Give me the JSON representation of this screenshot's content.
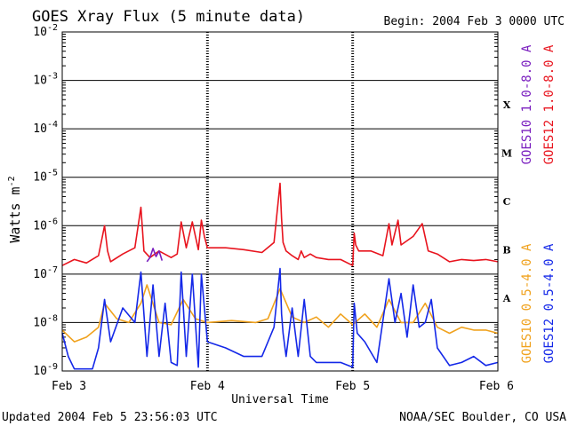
{
  "header": {
    "title": "GOES Xray Flux (5 minute data)",
    "begin": "Begin:  2004 Feb 3 0000 UTC"
  },
  "footer": {
    "updated": "Updated 2004 Feb  5 23:56:03 UTC",
    "source": "NOAA/SEC Boulder, CO USA"
  },
  "colors": {
    "goes10_long": "#7a1fbf",
    "goes12_long": "#e8141e",
    "goes10_short": "#f0a21e",
    "goes12_short": "#1428e8",
    "axes": "#000000"
  },
  "chart_data": {
    "type": "line",
    "title": "GOES Xray Flux (5 minute data)",
    "xlabel": "Universal Time",
    "ylabel": "Watts m",
    "ylabel_superscript": "-2",
    "yscale": "log",
    "ylim": [
      1e-09,
      0.01
    ],
    "xlim": [
      "2004-02-03",
      "2004-02-06"
    ],
    "x_ticks": [
      "Feb 3",
      "Feb 4",
      "Feb 5",
      "Feb 6"
    ],
    "y_ticks": [
      {
        "base": "10",
        "exp": "-2"
      },
      {
        "base": "10",
        "exp": "-3"
      },
      {
        "base": "10",
        "exp": "-4"
      },
      {
        "base": "10",
        "exp": "-5"
      },
      {
        "base": "10",
        "exp": "-6"
      },
      {
        "base": "10",
        "exp": "-7"
      },
      {
        "base": "10",
        "exp": "-8"
      },
      {
        "base": "10",
        "exp": "-9"
      }
    ],
    "flare_classes": [
      "X",
      "M",
      "C",
      "B",
      "A"
    ],
    "grid": "horizontal at each decade",
    "legend_position": "right, rotated",
    "series": [
      {
        "name": "GOES10 1.0-8.0 A",
        "x": [
          "2004-02-03 14:00",
          "2004-02-03 14:30",
          "2004-02-03 15:00",
          "2004-02-03 15:30",
          "2004-02-03 16:00",
          "2004-02-03 16:30"
        ],
        "values": [
          1.8e-07,
          2.2e-07,
          3.4e-07,
          2.3e-07,
          3e-07,
          1.9e-07
        ]
      },
      {
        "name": "GOES12 1.0-8.0 A",
        "x": [
          "2004-02-03 00:00",
          "2004-02-03 02:00",
          "2004-02-03 04:00",
          "2004-02-03 06:00",
          "2004-02-03 07:00",
          "2004-02-03 07:30",
          "2004-02-03 08:00",
          "2004-02-03 10:00",
          "2004-02-03 12:00",
          "2004-02-03 13:00",
          "2004-02-03 13:30",
          "2004-02-03 14:30",
          "2004-02-03 16:00",
          "2004-02-03 18:00",
          "2004-02-03 19:00",
          "2004-02-03 19:40",
          "2004-02-03 20:30",
          "2004-02-03 21:30",
          "2004-02-03 22:30",
          "2004-02-03 23:00",
          "2004-02-03 23:30",
          "2004-02-04 00:00",
          "2004-02-04 03:00",
          "2004-02-04 06:00",
          "2004-02-04 09:00",
          "2004-02-04 11:00",
          "2004-02-04 12:00",
          "2004-02-04 12:15",
          "2004-02-04 12:30",
          "2004-02-04 13:00",
          "2004-02-04 14:00",
          "2004-02-04 15:00",
          "2004-02-04 15:30",
          "2004-02-04 16:00",
          "2004-02-04 17:00",
          "2004-02-04 18:00",
          "2004-02-04 20:00",
          "2004-02-04 22:00",
          "2004-02-05 00:00",
          "2004-02-05 00:15",
          "2004-02-05 00:30",
          "2004-02-05 01:00",
          "2004-02-05 03:00",
          "2004-02-05 05:00",
          "2004-02-05 06:00",
          "2004-02-05 06:30",
          "2004-02-05 07:30",
          "2004-02-05 08:00",
          "2004-02-05 10:00",
          "2004-02-05 11:30",
          "2004-02-05 12:30",
          "2004-02-05 14:00",
          "2004-02-05 16:00",
          "2004-02-05 18:00",
          "2004-02-05 20:00",
          "2004-02-05 22:00",
          "2004-02-06 00:00"
        ],
        "values": [
          1.5e-07,
          2e-07,
          1.7e-07,
          2.4e-07,
          1e-06,
          3e-07,
          1.8e-07,
          2.6e-07,
          3.5e-07,
          2.4e-06,
          3e-07,
          2.2e-07,
          3e-07,
          2.2e-07,
          2.6e-07,
          1.2e-06,
          3.5e-07,
          1.2e-06,
          3.2e-07,
          1.3e-06,
          6e-07,
          3.5e-07,
          3.5e-07,
          3.2e-07,
          2.8e-07,
          4.5e-07,
          7.5e-06,
          1.4e-06,
          4.5e-07,
          3e-07,
          2.4e-07,
          2e-07,
          3e-07,
          2.2e-07,
          2.6e-07,
          2.2e-07,
          2e-07,
          2e-07,
          1.5e-07,
          7e-07,
          4e-07,
          3e-07,
          3e-07,
          2.4e-07,
          1.1e-06,
          4e-07,
          1.3e-06,
          4e-07,
          6e-07,
          1.1e-06,
          3e-07,
          2.6e-07,
          1.8e-07,
          2e-07,
          1.9e-07,
          2e-07,
          1.8e-07
        ]
      },
      {
        "name": "GOES10 0.5-4.0 A",
        "x": [
          "2004-02-03 00:00",
          "2004-02-03 02:00",
          "2004-02-03 04:00",
          "2004-02-03 06:00",
          "2004-02-03 07:00",
          "2004-02-03 09:00",
          "2004-02-03 11:00",
          "2004-02-03 13:00",
          "2004-02-03 14:00",
          "2004-02-03 16:00",
          "2004-02-03 18:00",
          "2004-02-03 20:00",
          "2004-02-03 22:00",
          "2004-02-04 00:00",
          "2004-02-04 04:00",
          "2004-02-04 08:00",
          "2004-02-04 10:00",
          "2004-02-04 12:00",
          "2004-02-04 14:00",
          "2004-02-04 16:00",
          "2004-02-04 18:00",
          "2004-02-04 20:00",
          "2004-02-04 22:00",
          "2004-02-05 00:00",
          "2004-02-05 02:00",
          "2004-02-05 04:00",
          "2004-02-05 06:00",
          "2004-02-05 08:00",
          "2004-02-05 10:00",
          "2004-02-05 12:00",
          "2004-02-05 14:00",
          "2004-02-05 16:00",
          "2004-02-05 18:00",
          "2004-02-05 20:00",
          "2004-02-05 22:00",
          "2004-02-06 00:00"
        ],
        "values": [
          7e-09,
          4e-09,
          5e-09,
          8e-09,
          2.5e-08,
          1.2e-08,
          1e-08,
          2.5e-08,
          6e-08,
          1e-08,
          9e-09,
          3e-08,
          1.2e-08,
          1e-08,
          1.1e-08,
          1e-08,
          1.2e-08,
          5e-08,
          1.3e-08,
          1e-08,
          1.3e-08,
          8e-09,
          1.5e-08,
          9e-09,
          1.5e-08,
          8e-09,
          3e-08,
          1e-08,
          1e-08,
          2.5e-08,
          8e-09,
          6e-09,
          8e-09,
          7e-09,
          7e-09,
          6e-09
        ]
      },
      {
        "name": "GOES12 0.5-4.0 A",
        "x": [
          "2004-02-03 00:00",
          "2004-02-03 01:00",
          "2004-02-03 02:00",
          "2004-02-03 03:00",
          "2004-02-03 05:00",
          "2004-02-03 06:00",
          "2004-02-03 07:00",
          "2004-02-03 08:00",
          "2004-02-03 10:00",
          "2004-02-03 12:00",
          "2004-02-03 13:00",
          "2004-02-03 14:00",
          "2004-02-03 15:00",
          "2004-02-03 16:00",
          "2004-02-03 17:00",
          "2004-02-03 18:00",
          "2004-02-03 19:00",
          "2004-02-03 19:40",
          "2004-02-03 20:30",
          "2004-02-03 21:30",
          "2004-02-03 22:30",
          "2004-02-03 23:00",
          "2004-02-04 00:00",
          "2004-02-04 03:00",
          "2004-02-04 06:00",
          "2004-02-04 09:00",
          "2004-02-04 11:00",
          "2004-02-04 12:00",
          "2004-02-04 12:15",
          "2004-02-04 12:30",
          "2004-02-04 13:00",
          "2004-02-04 14:00",
          "2004-02-04 15:00",
          "2004-02-04 16:00",
          "2004-02-04 17:00",
          "2004-02-04 18:00",
          "2004-02-04 20:00",
          "2004-02-04 22:00",
          "2004-02-05 00:00",
          "2004-02-05 00:15",
          "2004-02-05 00:45",
          "2004-02-05 02:00",
          "2004-02-05 04:00",
          "2004-02-05 06:00",
          "2004-02-05 07:00",
          "2004-02-05 08:00",
          "2004-02-05 09:00",
          "2004-02-05 10:00",
          "2004-02-05 11:00",
          "2004-02-05 12:00",
          "2004-02-05 13:00",
          "2004-02-05 14:00",
          "2004-02-05 16:00",
          "2004-02-05 18:00",
          "2004-02-05 20:00",
          "2004-02-05 22:00",
          "2004-02-06 00:00"
        ],
        "values": [
          6e-09,
          2e-09,
          1.1e-09,
          1.1e-09,
          1.1e-09,
          3e-09,
          3e-08,
          4e-09,
          2e-08,
          1e-08,
          1.1e-07,
          2e-09,
          6e-08,
          2e-09,
          2.5e-08,
          1.5e-09,
          1.3e-09,
          1.1e-07,
          2e-09,
          1e-07,
          1.2e-09,
          1e-07,
          4e-09,
          3e-09,
          2e-09,
          2e-09,
          8e-09,
          1.3e-07,
          1.5e-08,
          6e-09,
          2e-09,
          2e-08,
          2e-09,
          3e-08,
          2e-09,
          1.5e-09,
          1.5e-09,
          1.5e-09,
          1.2e-09,
          2.5e-08,
          6e-09,
          4e-09,
          1.5e-09,
          8e-08,
          1e-08,
          4e-08,
          5e-09,
          6e-08,
          8e-09,
          1e-08,
          3e-08,
          3e-09,
          1.3e-09,
          1.5e-09,
          2e-09,
          1.3e-09,
          1.5e-09
        ]
      }
    ]
  }
}
